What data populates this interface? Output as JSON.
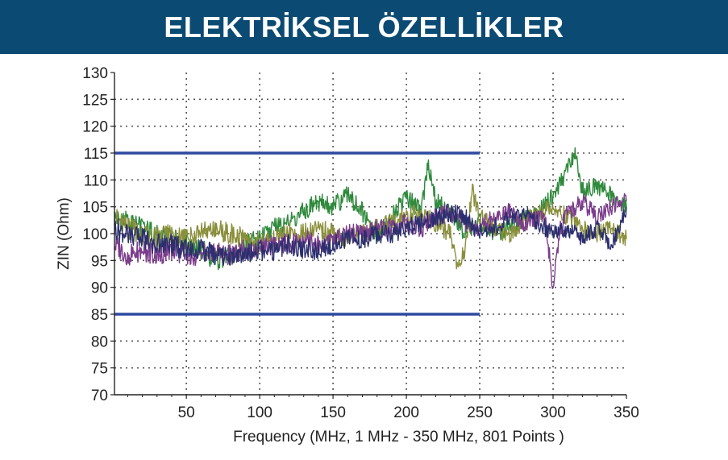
{
  "header": {
    "title": "ELEKTRİKSEL ÖZELLİKLER",
    "bg": "#0b4a72"
  },
  "chart_data": {
    "type": "line",
    "title": "",
    "xlabel": "Frequency (MHz, 1 MHz - 350 MHz, 801 Points )",
    "ylabel": "ZIN (Ohm)",
    "xlim": [
      1,
      350
    ],
    "ylim": [
      70,
      130
    ],
    "xticks": [
      "50",
      "100",
      "150",
      "200",
      "250",
      "300",
      "350"
    ],
    "yticks": [
      "130",
      "125",
      "120",
      "115",
      "110",
      "105",
      "100",
      "95",
      "90",
      "85",
      "80",
      "75",
      "70"
    ],
    "grid": true,
    "limit_lines": [
      {
        "y": 115,
        "x_start": 1,
        "x_end": 250,
        "color": "#2d4aa0"
      },
      {
        "y": 85,
        "x_start": 1,
        "x_end": 250,
        "color": "#2d4aa0"
      }
    ],
    "series": [
      {
        "color": "#2f8a3c",
        "x": [
          1,
          10,
          20,
          30,
          40,
          50,
          60,
          70,
          80,
          90,
          100,
          110,
          120,
          130,
          140,
          150,
          160,
          170,
          180,
          190,
          200,
          210,
          215,
          220,
          230,
          240,
          250,
          260,
          270,
          280,
          290,
          300,
          310,
          315,
          320,
          330,
          340,
          350
        ],
        "values": [
          103,
          102,
          101,
          100,
          99,
          98,
          97,
          95,
          96,
          98,
          99,
          101,
          102,
          104,
          106,
          105,
          107,
          104,
          100,
          103,
          107,
          104,
          113,
          106,
          104,
          100,
          102,
          100,
          101,
          103,
          104,
          107,
          112,
          115,
          108,
          109,
          107,
          105
        ]
      },
      {
        "color": "#8a8f3a",
        "x": [
          1,
          10,
          20,
          30,
          40,
          50,
          60,
          70,
          80,
          90,
          100,
          110,
          120,
          130,
          140,
          150,
          160,
          170,
          180,
          190,
          200,
          210,
          220,
          230,
          235,
          240,
          245,
          250,
          260,
          270,
          280,
          290,
          300,
          310,
          320,
          330,
          340,
          350
        ],
        "values": [
          103,
          101,
          100,
          99,
          100,
          99,
          100,
          101,
          100,
          99,
          98,
          99,
          100,
          100,
          101,
          100,
          99,
          100,
          101,
          102,
          103,
          104,
          102,
          100,
          93,
          97,
          108,
          103,
          101,
          100,
          102,
          104,
          105,
          103,
          101,
          100,
          101,
          99
        ]
      },
      {
        "color": "#7b3c8c",
        "x": [
          1,
          10,
          20,
          30,
          40,
          50,
          60,
          70,
          80,
          90,
          100,
          110,
          120,
          130,
          140,
          150,
          160,
          170,
          180,
          190,
          200,
          210,
          220,
          230,
          240,
          250,
          260,
          270,
          280,
          290,
          295,
          300,
          305,
          310,
          320,
          330,
          340,
          350
        ],
        "values": [
          98,
          96,
          97,
          96,
          97,
          96,
          96,
          97,
          96,
          97,
          97,
          98,
          98,
          99,
          98,
          99,
          100,
          100,
          101,
          101,
          102,
          101,
          103,
          104,
          102,
          101,
          103,
          104,
          102,
          103,
          102,
          90,
          101,
          104,
          106,
          103,
          105,
          106
        ]
      },
      {
        "color": "#2c2f6e",
        "x": [
          1,
          10,
          20,
          30,
          40,
          50,
          60,
          70,
          80,
          90,
          100,
          110,
          120,
          130,
          140,
          150,
          160,
          170,
          180,
          190,
          200,
          210,
          220,
          230,
          240,
          250,
          260,
          270,
          280,
          290,
          300,
          310,
          320,
          330,
          340,
          350
        ],
        "values": [
          101,
          100,
          99,
          98,
          98,
          97,
          97,
          96,
          96,
          96,
          97,
          97,
          98,
          97,
          97,
          98,
          99,
          99,
          100,
          100,
          101,
          102,
          103,
          104,
          103,
          100,
          101,
          103,
          104,
          102,
          100,
          101,
          99,
          101,
          98,
          105
        ]
      }
    ]
  }
}
